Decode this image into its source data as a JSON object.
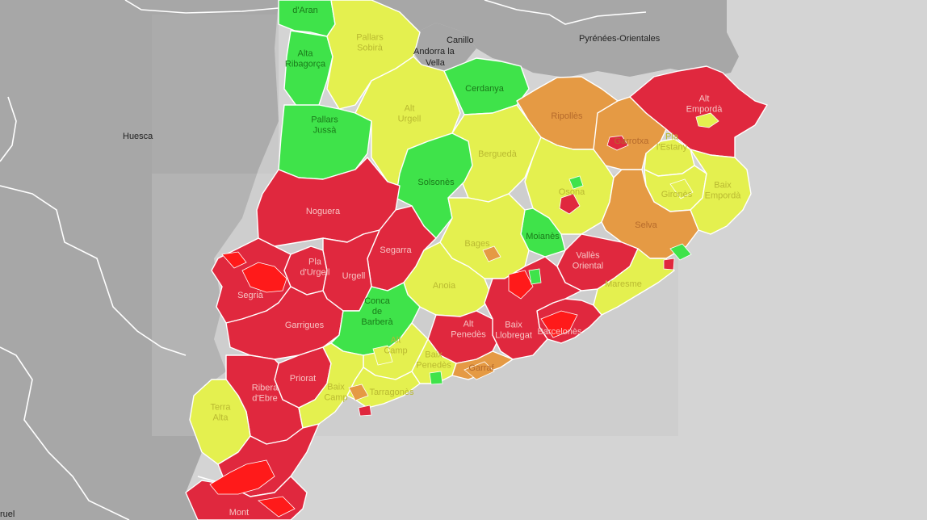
{
  "colors": {
    "green": "#3fe34a",
    "yellow": "#e4f04f",
    "orange": "#e59a44",
    "red": "#e0283e",
    "bright_red": "#ff1a1a",
    "land": "#a7a7a7",
    "sea": "#d4d4d4"
  },
  "base_labels": {
    "huesca": "Huesca",
    "canillo": "Canillo",
    "andorra_la_vella_1": "Andorra la",
    "andorra_la_vella_2": "Vella",
    "pyrenees_orientales": "Pyrénées-Orientales",
    "teruel": "ruel"
  },
  "comarques": [
    {
      "key": "val_daran",
      "lines": [
        "d'Aran"
      ],
      "color": "green"
    },
    {
      "key": "alta_ribagorca",
      "lines": [
        "Alta",
        "Ribagorça"
      ],
      "color": "green"
    },
    {
      "key": "pallars_sobira",
      "lines": [
        "Pallars",
        "Sobirà"
      ],
      "color": "yellow"
    },
    {
      "key": "pallars_jussa",
      "lines": [
        "Pallars",
        "Jussà"
      ],
      "color": "green"
    },
    {
      "key": "alt_urgell",
      "lines": [
        "Alt",
        "Urgell"
      ],
      "color": "yellow"
    },
    {
      "key": "cerdanya",
      "lines": [
        "Cerdanya"
      ],
      "color": "green"
    },
    {
      "key": "ripolles",
      "lines": [
        "Ripollès"
      ],
      "color": "orange"
    },
    {
      "key": "alt_emporda",
      "lines": [
        "Alt",
        "Empordà"
      ],
      "color": "red"
    },
    {
      "key": "garrotxa",
      "lines": [
        "Garrotxa"
      ],
      "color": "orange"
    },
    {
      "key": "bergueda",
      "lines": [
        "Berguedà"
      ],
      "color": "yellow"
    },
    {
      "key": "solsones",
      "lines": [
        "Solsonès"
      ],
      "color": "green"
    },
    {
      "key": "pla_de_lestany",
      "lines": [
        "Pla",
        "l'Estany"
      ],
      "color": "yellow"
    },
    {
      "key": "osona",
      "lines": [
        "Osona"
      ],
      "color": "yellow"
    },
    {
      "key": "girones",
      "lines": [
        "Gironès"
      ],
      "color": "yellow"
    },
    {
      "key": "baix_emporda",
      "lines": [
        "Baix",
        "Empordà"
      ],
      "color": "yellow"
    },
    {
      "key": "noguera",
      "lines": [
        "Noguera"
      ],
      "color": "red"
    },
    {
      "key": "selva",
      "lines": [
        "Selva"
      ],
      "color": "orange"
    },
    {
      "key": "moianes",
      "lines": [
        "Moianès"
      ],
      "color": "green"
    },
    {
      "key": "bages",
      "lines": [
        "Bages"
      ],
      "color": "yellow"
    },
    {
      "key": "segarra",
      "lines": [
        "Segarra"
      ],
      "color": "red"
    },
    {
      "key": "pla_durgell",
      "lines": [
        "Pla",
        "d'Urgell"
      ],
      "color": "red"
    },
    {
      "key": "urgell",
      "lines": [
        "Urgell"
      ],
      "color": "red"
    },
    {
      "key": "segria",
      "lines": [
        "Segrià"
      ],
      "color": "red"
    },
    {
      "key": "valles_oriental",
      "lines": [
        "Vallès",
        "Oriental"
      ],
      "color": "red"
    },
    {
      "key": "maresme",
      "lines": [
        "Maresme"
      ],
      "color": "yellow"
    },
    {
      "key": "anoia",
      "lines": [
        "Anoia"
      ],
      "color": "yellow"
    },
    {
      "key": "garrigues",
      "lines": [
        "Garrigues"
      ],
      "color": "red"
    },
    {
      "key": "conca_de_barbera",
      "lines": [
        "Conca",
        "de",
        "Barberà"
      ],
      "color": "green"
    },
    {
      "key": "alt_penedes",
      "lines": [
        "Alt",
        "Penedès"
      ],
      "color": "red"
    },
    {
      "key": "barcelones",
      "lines": [
        "Barcelonès"
      ],
      "color": "red"
    },
    {
      "key": "baix_llobregat",
      "lines": [
        "Baix",
        "Llobregat"
      ],
      "color": "red"
    },
    {
      "key": "alt_camp",
      "lines": [
        "Alt",
        "Camp"
      ],
      "color": "yellow"
    },
    {
      "key": "baix_penedes",
      "lines": [
        "Baix",
        "Penedès"
      ],
      "color": "yellow"
    },
    {
      "key": "garraf",
      "lines": [
        "Garraf"
      ],
      "color": "orange"
    },
    {
      "key": "priorat",
      "lines": [
        "Priorat"
      ],
      "color": "red"
    },
    {
      "key": "ribera_debre",
      "lines": [
        "Ribera",
        "d'Ebre"
      ],
      "color": "red"
    },
    {
      "key": "baix_camp",
      "lines": [
        "Baix",
        "Camp"
      ],
      "color": "yellow"
    },
    {
      "key": "tarragones",
      "lines": [
        "Tarragonès"
      ],
      "color": "yellow"
    },
    {
      "key": "terra_alta",
      "lines": [
        "Terra",
        "Alta"
      ],
      "color": "yellow"
    },
    {
      "key": "montsia",
      "lines": [
        "Mont"
      ],
      "color": "red"
    },
    {
      "key": "baix_ebre",
      "lines": [],
      "color": "red"
    }
  ]
}
